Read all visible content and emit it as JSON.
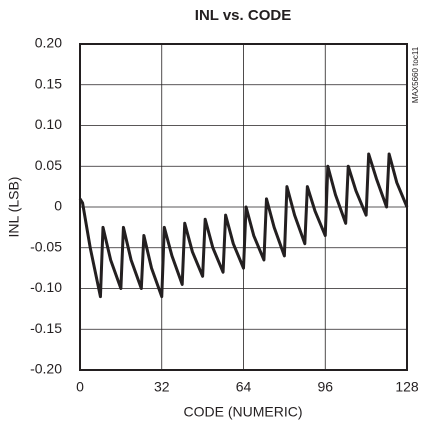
{
  "chart_data": {
    "type": "line",
    "title": "INL vs. CODE",
    "x_label": "CODE (NUMERIC)",
    "y_label": "INL (LSB)",
    "annotation": "MAX5660 toc11",
    "x": [
      0,
      1,
      4,
      8,
      9,
      12,
      16,
      17,
      20,
      24,
      25,
      28,
      32,
      33,
      36,
      40,
      41,
      44,
      48,
      49,
      52,
      56,
      57,
      60,
      64,
      65,
      68,
      72,
      73,
      76,
      80,
      81,
      84,
      88,
      89,
      92,
      96,
      97,
      100,
      104,
      105,
      108,
      112,
      113,
      116,
      120,
      121,
      124,
      128
    ],
    "series": [
      {
        "color": "#231f20",
        "values": [
          0.01,
          0.005,
          -0.05,
          -0.11,
          -0.025,
          -0.065,
          -0.1,
          -0.025,
          -0.065,
          -0.1,
          -0.035,
          -0.075,
          -0.11,
          -0.025,
          -0.06,
          -0.095,
          -0.02,
          -0.055,
          -0.085,
          -0.015,
          -0.05,
          -0.08,
          -0.01,
          -0.045,
          -0.075,
          0.0,
          -0.035,
          -0.065,
          0.01,
          -0.025,
          -0.06,
          0.025,
          -0.01,
          -0.045,
          0.025,
          -0.005,
          -0.035,
          0.05,
          0.015,
          -0.02,
          0.05,
          0.02,
          -0.01,
          0.065,
          0.035,
          0.0,
          0.065,
          0.03,
          0.0
        ]
      }
    ],
    "xlim": [
      0,
      128
    ],
    "xticks": [
      0,
      32,
      64,
      96,
      128
    ],
    "ylim": [
      -0.2,
      0.2
    ],
    "yticks": [
      {
        "value": -0.2,
        "label": "-0.20"
      },
      -0.15,
      {
        "value": -0.1,
        "label": "-0.10"
      },
      -0.05,
      0,
      0.05,
      {
        "value": 0.1,
        "label": "0.10"
      },
      0.15,
      {
        "value": 0.2,
        "label": "0.20"
      }
    ],
    "grid": true
  }
}
